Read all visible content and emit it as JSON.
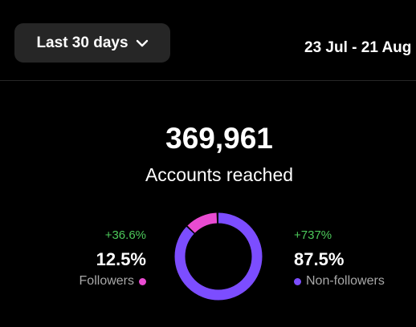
{
  "header": {
    "range_label": "Last 30 days",
    "date_range": "23 Jul - 21 Aug"
  },
  "summary": {
    "total": "369,961",
    "label": "Accounts reached"
  },
  "followers": {
    "change": "+36.6%",
    "percent": "12.5%",
    "label": "Followers",
    "color": "#e94bd1"
  },
  "non_followers": {
    "change": "+737%",
    "percent": "87.5%",
    "label": "Non-followers",
    "color": "#7c4dff"
  },
  "donut": {
    "followers_share": 12.5,
    "non_followers_share": 87.5
  },
  "colors": {
    "positive_change": "#4cc95a",
    "background": "#000000",
    "button_bg": "#262626"
  }
}
